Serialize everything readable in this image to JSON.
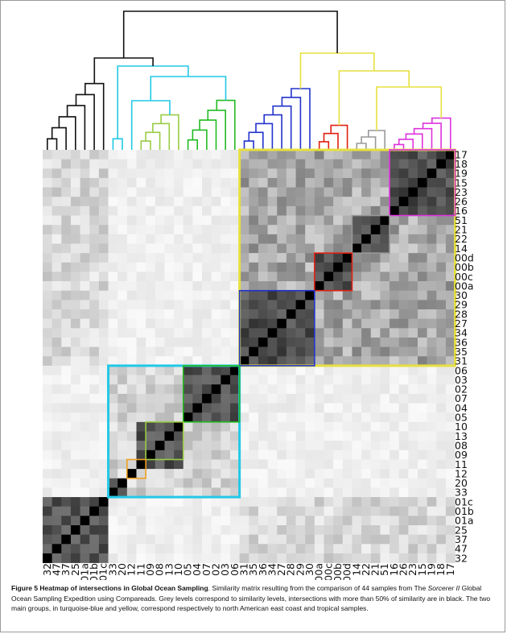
{
  "figure": {
    "row_labels": [
      "17",
      "18",
      "19",
      "15",
      "23",
      "26",
      "16",
      "51",
      "21",
      "22",
      "14",
      "00d",
      "00b",
      "00c",
      "00a",
      "30",
      "29",
      "28",
      "27",
      "34",
      "36",
      "35",
      "31",
      "06",
      "03",
      "02",
      "07",
      "04",
      "05",
      "10",
      "13",
      "08",
      "09",
      "11",
      "12",
      "20",
      "33",
      "01c",
      "01b",
      "01a",
      "25",
      "37",
      "47",
      "32"
    ],
    "col_labels": [
      "32",
      "47",
      "37",
      "25",
      "01a",
      "01b",
      "01c",
      "33",
      "20",
      "12",
      "11",
      "09",
      "08",
      "13",
      "10",
      "05",
      "04",
      "07",
      "02",
      "03",
      "06",
      "31",
      "35",
      "36",
      "34",
      "27",
      "28",
      "29",
      "30",
      "00a",
      "00c",
      "00b",
      "00d",
      "14",
      "22",
      "21",
      "51",
      "16",
      "26",
      "23",
      "15",
      "19",
      "18",
      "17"
    ],
    "cluster_colors": {
      "yellow": "#e6e040",
      "turquoise": "#22c8e6",
      "blue": "#2233cc",
      "green": "#22bb22",
      "light_green": "#99cc44",
      "orange": "#f0a020",
      "red": "#e02010",
      "grey": "#999999",
      "magenta": "#dd33dd",
      "black": "#111111"
    }
  },
  "caption": {
    "title": "Figure 5 Heatmap of intersections in Global Ocean Sampling",
    "text_a": ". Similarity matrix resulting from the comparison of 44 samples from The ",
    "italic": "Sorcerer II",
    "text_b": " Global Ocean Sampling Expedition using Compareads. Grey levels correspond to similarity levels, intersections with more than 50% of similarity are in black. The two main groups, in turquoise-blue and yellow, correspond respectively to north American east coast and tropical samples."
  }
}
